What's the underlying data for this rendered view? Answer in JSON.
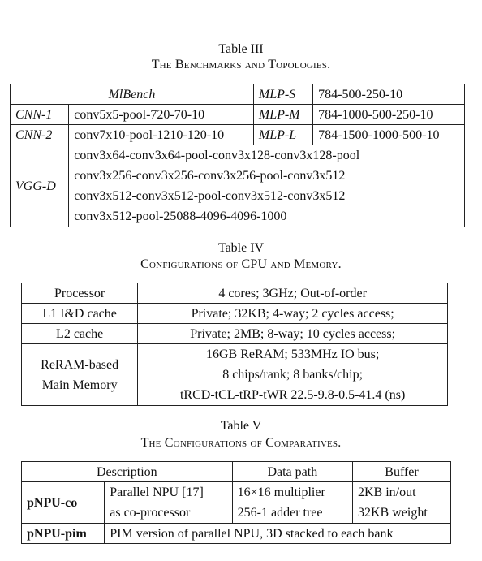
{
  "table3": {
    "caption_label": "Table III",
    "caption_title": "The Benchmarks and Topologies.",
    "mlbench": "MlBench",
    "mlp_s": {
      "name": "MLP-S",
      "topology": "784-500-250-10"
    },
    "cnn1": {
      "name": "CNN-1",
      "topology": "conv5x5-pool-720-70-10"
    },
    "mlp_m": {
      "name": "MLP-M",
      "topology": "784-1000-500-250-10"
    },
    "cnn2": {
      "name": "CNN-2",
      "topology": "conv7x10-pool-1210-120-10"
    },
    "mlp_l": {
      "name": "MLP-L",
      "topology": "784-1500-1000-500-10"
    },
    "vgg": {
      "name": "VGG-D",
      "lines": [
        "conv3x64-conv3x64-pool-conv3x128-conv3x128-pool",
        "conv3x256-conv3x256-conv3x256-pool-conv3x512",
        "conv3x512-conv3x512-pool-conv3x512-conv3x512",
        "conv3x512-pool-25088-4096-4096-1000"
      ]
    }
  },
  "table4": {
    "caption_label": "Table IV",
    "caption_title": "Configurations of CPU and Memory.",
    "rows": [
      {
        "name": "Processor",
        "value": "4 cores; 3GHz; Out-of-order"
      },
      {
        "name": "L1 I&D cache",
        "value": "Private; 32KB; 4-way; 2 cycles access;"
      },
      {
        "name": "L2 cache",
        "value": "Private; 2MB; 8-way; 10 cycles access;"
      }
    ],
    "memory": {
      "name_lines": [
        "ReRAM-based",
        "Main Memory"
      ],
      "value_lines": [
        "16GB ReRAM; 533MHz IO bus;",
        "8 chips/rank; 8 banks/chip;",
        "tRCD-tCL-tRP-tWR 22.5-9.8-0.5-41.4 (ns)"
      ]
    }
  },
  "table5": {
    "caption_label": "Table V",
    "caption_title": "The Configurations of Comparatives.",
    "headers": {
      "description": "Description",
      "datapath": "Data path",
      "buffer": "Buffer"
    },
    "pnpu_co": {
      "name": "pNPU-co",
      "desc_lines": [
        "Parallel NPU [17]",
        "as co-processor"
      ],
      "datapath_lines": [
        "16×16 multiplier",
        "256-1 adder tree"
      ],
      "buffer_lines": [
        "2KB in/out",
        "32KB weight"
      ]
    },
    "pnpu_pim": {
      "name": "pNPU-pim",
      "desc": "PIM version of parallel NPU, 3D stacked to each bank"
    }
  }
}
